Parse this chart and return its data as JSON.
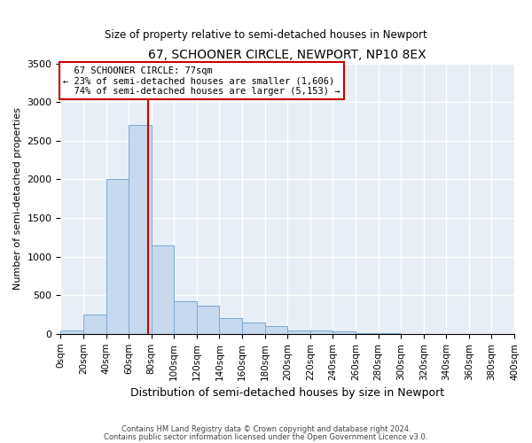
{
  "title": "67, SCHOONER CIRCLE, NEWPORT, NP10 8EX",
  "subtitle": "Size of property relative to semi-detached houses in Newport",
  "xlabel": "Distribution of semi-detached houses by size in Newport",
  "ylabel": "Number of semi-detached properties",
  "bin_edges": [
    0,
    20,
    40,
    60,
    80,
    100,
    120,
    140,
    160,
    180,
    200,
    220,
    240,
    260,
    280,
    300,
    320,
    340,
    360,
    380,
    400
  ],
  "counts": [
    40,
    250,
    2000,
    2700,
    1150,
    420,
    370,
    200,
    150,
    100,
    50,
    50,
    30,
    10,
    10,
    5,
    5,
    2,
    2,
    0
  ],
  "bar_color": "#c8d8ed",
  "bar_edge_color": "#7aaad4",
  "property_size": 77,
  "property_label": "67 SCHOONER CIRCLE: 77sqm",
  "pct_smaller": 23,
  "pct_larger": 74,
  "n_smaller": 1606,
  "n_larger": 5153,
  "vline_color": "#cc0000",
  "annotation_box_color": "#cc0000",
  "ylim": [
    0,
    3500
  ],
  "yticks": [
    0,
    500,
    1000,
    1500,
    2000,
    2500,
    3000,
    3500
  ],
  "background_color": "#e8eef5",
  "grid_color": "#ffffff",
  "footer_line1": "Contains HM Land Registry data © Crown copyright and database right 2024.",
  "footer_line2": "Contains public sector information licensed under the Open Government Licence v3.0."
}
